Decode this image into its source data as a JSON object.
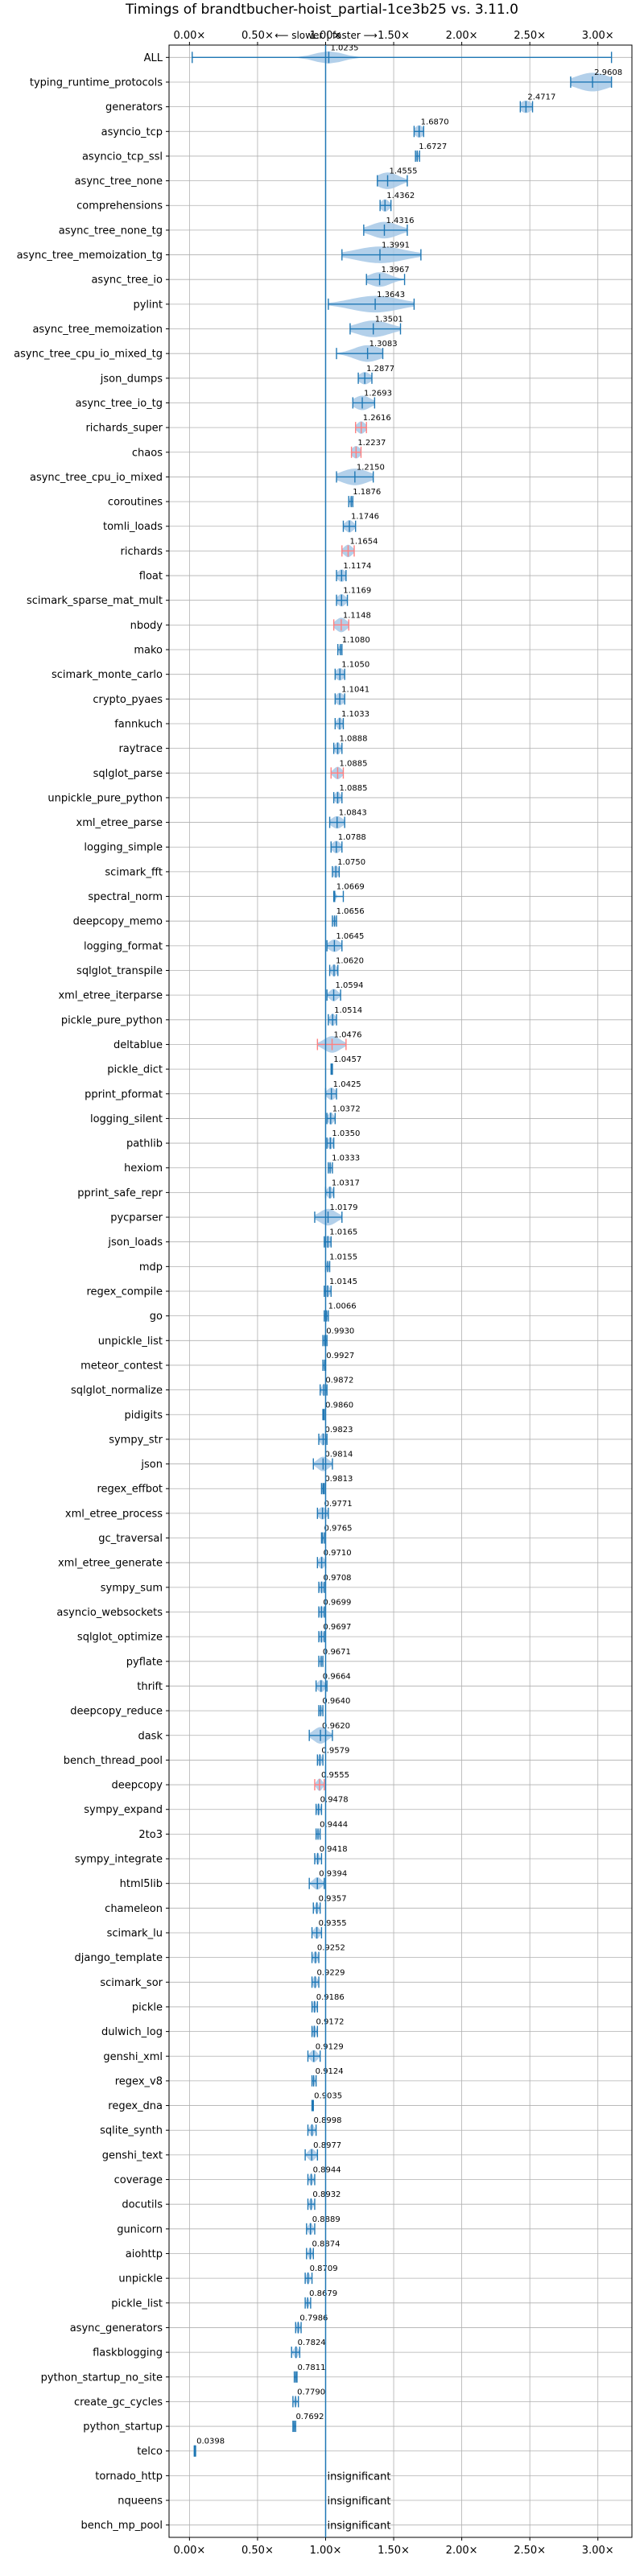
{
  "chart_data": {
    "type": "violin",
    "title": "Timings of brandtbucher-hoist_partial-1ce3b25 vs. 3.11.0",
    "direction_label": "⟵ slower | faster ⟶",
    "xlim": [
      -0.15,
      3.25
    ],
    "xticks": [
      0.0,
      0.5,
      1.0,
      1.5,
      2.0,
      2.5,
      3.0
    ],
    "xtick_labels": [
      "0.00×",
      "0.50×",
      "1.00×",
      "1.50×",
      "2.00×",
      "2.50×",
      "3.00×"
    ],
    "reference_line": 1.0,
    "insignificant_label": "insignificant",
    "colors": {
      "violin": "#a6c8e6",
      "axis_line": "#1f77b4",
      "whisker": "#1f77b4",
      "highlight": "#ff7f7f",
      "grid": "#b0b0b0"
    },
    "benchmarks": [
      {
        "name": "ALL",
        "value": 1.0235,
        "label": "1.0235",
        "lo": 0.02,
        "hi": 3.1,
        "spread": 0.1,
        "width": 0.6
      },
      {
        "name": "typing_runtime_protocols",
        "value": 2.9608,
        "label": "2.9608",
        "lo": 2.8,
        "hi": 3.1,
        "spread": 0.12,
        "width": 0.9
      },
      {
        "name": "generators",
        "value": 2.4717,
        "label": "2.4717",
        "lo": 2.43,
        "hi": 2.52,
        "spread": 0.04,
        "width": 0.6
      },
      {
        "name": "asyncio_tcp",
        "value": 1.687,
        "label": "1.6870",
        "lo": 1.65,
        "hi": 1.72,
        "spread": 0.03,
        "width": 0.6
      },
      {
        "name": "asyncio_tcp_ssl",
        "value": 1.6727,
        "label": "1.6727",
        "lo": 1.66,
        "hi": 1.69,
        "spread": 0.01,
        "width": 0.5
      },
      {
        "name": "async_tree_none",
        "value": 1.4555,
        "label": "1.4555",
        "lo": 1.38,
        "hi": 1.6,
        "spread": 0.08,
        "width": 0.8
      },
      {
        "name": "comprehensions",
        "value": 1.4362,
        "label": "1.4362",
        "lo": 1.4,
        "hi": 1.48,
        "spread": 0.03,
        "width": 0.6
      },
      {
        "name": "async_tree_none_tg",
        "value": 1.4316,
        "label": "1.4316",
        "lo": 1.28,
        "hi": 1.6,
        "spread": 0.1,
        "width": 0.8
      },
      {
        "name": "async_tree_memoization_tg",
        "value": 1.3991,
        "label": "1.3991",
        "lo": 1.12,
        "hi": 1.7,
        "spread": 0.18,
        "width": 0.8
      },
      {
        "name": "async_tree_io",
        "value": 1.3967,
        "label": "1.3967",
        "lo": 1.3,
        "hi": 1.58,
        "spread": 0.08,
        "width": 0.7
      },
      {
        "name": "pylint",
        "value": 1.3643,
        "label": "1.3643",
        "lo": 1.02,
        "hi": 1.65,
        "spread": 0.18,
        "width": 0.8
      },
      {
        "name": "async_tree_memoization",
        "value": 1.3501,
        "label": "1.3501",
        "lo": 1.18,
        "hi": 1.55,
        "spread": 0.12,
        "width": 0.8
      },
      {
        "name": "async_tree_cpu_io_mixed_tg",
        "value": 1.3083,
        "label": "1.3083",
        "lo": 1.08,
        "hi": 1.42,
        "spread": 0.1,
        "width": 0.8
      },
      {
        "name": "json_dumps",
        "value": 1.2877,
        "label": "1.2877",
        "lo": 1.24,
        "hi": 1.34,
        "spread": 0.04,
        "width": 0.6
      },
      {
        "name": "async_tree_io_tg",
        "value": 1.2693,
        "label": "1.2693",
        "lo": 1.2,
        "hi": 1.36,
        "spread": 0.06,
        "width": 0.7
      },
      {
        "name": "richards_super",
        "value": 1.2616,
        "label": "1.2616",
        "lo": 1.22,
        "hi": 1.3,
        "spread": 0.03,
        "width": 0.6,
        "highlight": true
      },
      {
        "name": "chaos",
        "value": 1.2237,
        "label": "1.2237",
        "lo": 1.19,
        "hi": 1.26,
        "spread": 0.03,
        "width": 0.6,
        "highlight": true
      },
      {
        "name": "async_tree_cpu_io_mixed",
        "value": 1.215,
        "label": "1.2150",
        "lo": 1.08,
        "hi": 1.35,
        "spread": 0.1,
        "width": 0.8
      },
      {
        "name": "coroutines",
        "value": 1.1876,
        "label": "1.1876",
        "lo": 1.17,
        "hi": 1.2,
        "spread": 0.01,
        "width": 0.5
      },
      {
        "name": "tomli_loads",
        "value": 1.1746,
        "label": "1.1746",
        "lo": 1.13,
        "hi": 1.22,
        "spread": 0.03,
        "width": 0.6
      },
      {
        "name": "richards",
        "value": 1.1654,
        "label": "1.1654",
        "lo": 1.12,
        "hi": 1.21,
        "spread": 0.03,
        "width": 0.6,
        "highlight": true
      },
      {
        "name": "float",
        "value": 1.1174,
        "label": "1.1174",
        "lo": 1.08,
        "hi": 1.15,
        "spread": 0.03,
        "width": 0.6
      },
      {
        "name": "scimark_sparse_mat_mult",
        "value": 1.1169,
        "label": "1.1169",
        "lo": 1.08,
        "hi": 1.16,
        "spread": 0.03,
        "width": 0.6
      },
      {
        "name": "nbody",
        "value": 1.1148,
        "label": "1.1148",
        "lo": 1.06,
        "hi": 1.17,
        "spread": 0.04,
        "width": 0.7,
        "highlight": true
      },
      {
        "name": "mako",
        "value": 1.108,
        "label": "1.1080",
        "lo": 1.09,
        "hi": 1.12,
        "spread": 0.01,
        "width": 0.5
      },
      {
        "name": "scimark_monte_carlo",
        "value": 1.105,
        "label": "1.1050",
        "lo": 1.07,
        "hi": 1.14,
        "spread": 0.03,
        "width": 0.6
      },
      {
        "name": "crypto_pyaes",
        "value": 1.1041,
        "label": "1.1041",
        "lo": 1.07,
        "hi": 1.14,
        "spread": 0.03,
        "width": 0.6
      },
      {
        "name": "fannkuch",
        "value": 1.1033,
        "label": "1.1033",
        "lo": 1.07,
        "hi": 1.13,
        "spread": 0.02,
        "width": 0.6
      },
      {
        "name": "raytrace",
        "value": 1.0888,
        "label": "1.0888",
        "lo": 1.06,
        "hi": 1.12,
        "spread": 0.02,
        "width": 0.6
      },
      {
        "name": "sqlglot_parse",
        "value": 1.0885,
        "label": "1.0885",
        "lo": 1.04,
        "hi": 1.13,
        "spread": 0.03,
        "width": 0.6,
        "highlight": true
      },
      {
        "name": "unpickle_pure_python",
        "value": 1.0885,
        "label": "1.0885",
        "lo": 1.06,
        "hi": 1.12,
        "spread": 0.02,
        "width": 0.6
      },
      {
        "name": "xml_etree_parse",
        "value": 1.0843,
        "label": "1.0843",
        "lo": 1.03,
        "hi": 1.14,
        "spread": 0.04,
        "width": 0.6
      },
      {
        "name": "logging_simple",
        "value": 1.0788,
        "label": "1.0788",
        "lo": 1.04,
        "hi": 1.12,
        "spread": 0.03,
        "width": 0.6
      },
      {
        "name": "scimark_fft",
        "value": 1.075,
        "label": "1.0750",
        "lo": 1.05,
        "hi": 1.1,
        "spread": 0.02,
        "width": 0.6
      },
      {
        "name": "spectral_norm",
        "value": 1.0669,
        "label": "1.0669",
        "lo": 1.06,
        "hi": 1.13,
        "spread": 0.01,
        "width": 0.4
      },
      {
        "name": "deepcopy_memo",
        "value": 1.0656,
        "label": "1.0656",
        "lo": 1.05,
        "hi": 1.08,
        "spread": 0.01,
        "width": 0.5
      },
      {
        "name": "logging_format",
        "value": 1.0645,
        "label": "1.0645",
        "lo": 1.01,
        "hi": 1.12,
        "spread": 0.04,
        "width": 0.6
      },
      {
        "name": "sqlglot_transpile",
        "value": 1.062,
        "label": "1.0620",
        "lo": 1.03,
        "hi": 1.09,
        "spread": 0.02,
        "width": 0.6
      },
      {
        "name": "xml_etree_iterparse",
        "value": 1.0594,
        "label": "1.0594",
        "lo": 1.01,
        "hi": 1.11,
        "spread": 0.03,
        "width": 0.6
      },
      {
        "name": "pickle_pure_python",
        "value": 1.0514,
        "label": "1.0514",
        "lo": 1.02,
        "hi": 1.08,
        "spread": 0.02,
        "width": 0.6
      },
      {
        "name": "deltablue",
        "value": 1.0476,
        "label": "1.0476",
        "lo": 0.94,
        "hi": 1.15,
        "spread": 0.06,
        "width": 0.8,
        "highlight": true
      },
      {
        "name": "pickle_dict",
        "value": 1.0457,
        "label": "1.0457",
        "lo": 1.04,
        "hi": 1.05,
        "spread": 0.005,
        "width": 0.4
      },
      {
        "name": "pprint_pformat",
        "value": 1.0425,
        "label": "1.0425",
        "lo": 1.0,
        "hi": 1.08,
        "spread": 0.03,
        "width": 0.6
      },
      {
        "name": "logging_silent",
        "value": 1.0372,
        "label": "1.0372",
        "lo": 1.01,
        "hi": 1.07,
        "spread": 0.02,
        "width": 0.6
      },
      {
        "name": "pathlib",
        "value": 1.035,
        "label": "1.0350",
        "lo": 1.01,
        "hi": 1.06,
        "spread": 0.02,
        "width": 0.6
      },
      {
        "name": "hexiom",
        "value": 1.0333,
        "label": "1.0333",
        "lo": 1.02,
        "hi": 1.05,
        "spread": 0.01,
        "width": 0.5
      },
      {
        "name": "pprint_safe_repr",
        "value": 1.0317,
        "label": "1.0317",
        "lo": 1.0,
        "hi": 1.06,
        "spread": 0.02,
        "width": 0.6
      },
      {
        "name": "pycparser",
        "value": 1.0179,
        "label": "1.0179",
        "lo": 0.92,
        "hi": 1.12,
        "spread": 0.06,
        "width": 0.8
      },
      {
        "name": "json_loads",
        "value": 1.0165,
        "label": "1.0165",
        "lo": 0.99,
        "hi": 1.04,
        "spread": 0.02,
        "width": 0.6
      },
      {
        "name": "mdp",
        "value": 1.0155,
        "label": "1.0155",
        "lo": 1.0,
        "hi": 1.03,
        "spread": 0.01,
        "width": 0.5
      },
      {
        "name": "regex_compile",
        "value": 1.0145,
        "label": "1.0145",
        "lo": 0.99,
        "hi": 1.04,
        "spread": 0.015,
        "width": 0.6
      },
      {
        "name": "go",
        "value": 1.0066,
        "label": "1.0066",
        "lo": 0.99,
        "hi": 1.02,
        "spread": 0.01,
        "width": 0.5
      },
      {
        "name": "unpickle_list",
        "value": 0.993,
        "label": "0.9930",
        "lo": 0.98,
        "hi": 1.01,
        "spread": 0.01,
        "width": 0.5
      },
      {
        "name": "meteor_contest",
        "value": 0.9927,
        "label": "0.9927",
        "lo": 0.98,
        "hi": 1.0,
        "spread": 0.008,
        "width": 0.5
      },
      {
        "name": "sqlglot_normalize",
        "value": 0.9872,
        "label": "0.9872",
        "lo": 0.96,
        "hi": 1.01,
        "spread": 0.015,
        "width": 0.6
      },
      {
        "name": "pidigits",
        "value": 0.986,
        "label": "0.9860",
        "lo": 0.98,
        "hi": 0.99,
        "spread": 0.004,
        "width": 0.4
      },
      {
        "name": "sympy_str",
        "value": 0.9823,
        "label": "0.9823",
        "lo": 0.95,
        "hi": 1.01,
        "spread": 0.02,
        "width": 0.6
      },
      {
        "name": "json",
        "value": 0.9814,
        "label": "0.9814",
        "lo": 0.91,
        "hi": 1.05,
        "spread": 0.04,
        "width": 0.7
      },
      {
        "name": "regex_effbot",
        "value": 0.9813,
        "label": "0.9813",
        "lo": 0.97,
        "hi": 0.99,
        "spread": 0.008,
        "width": 0.5
      },
      {
        "name": "xml_etree_process",
        "value": 0.9771,
        "label": "0.9771",
        "lo": 0.94,
        "hi": 1.02,
        "spread": 0.03,
        "width": 0.6
      },
      {
        "name": "gc_traversal",
        "value": 0.9765,
        "label": "0.9765",
        "lo": 0.97,
        "hi": 0.99,
        "spread": 0.006,
        "width": 0.4
      },
      {
        "name": "xml_etree_generate",
        "value": 0.971,
        "label": "0.9710",
        "lo": 0.94,
        "hi": 1.0,
        "spread": 0.02,
        "width": 0.6
      },
      {
        "name": "sympy_sum",
        "value": 0.9708,
        "label": "0.9708",
        "lo": 0.95,
        "hi": 0.99,
        "spread": 0.015,
        "width": 0.6
      },
      {
        "name": "asyncio_websockets",
        "value": 0.9699,
        "label": "0.9699",
        "lo": 0.95,
        "hi": 0.99,
        "spread": 0.015,
        "width": 0.6
      },
      {
        "name": "sqlglot_optimize",
        "value": 0.9697,
        "label": "0.9697",
        "lo": 0.95,
        "hi": 0.99,
        "spread": 0.015,
        "width": 0.6
      },
      {
        "name": "pyflate",
        "value": 0.9671,
        "label": "0.9671",
        "lo": 0.95,
        "hi": 0.98,
        "spread": 0.01,
        "width": 0.5
      },
      {
        "name": "thrift",
        "value": 0.9664,
        "label": "0.9664",
        "lo": 0.93,
        "hi": 1.01,
        "spread": 0.025,
        "width": 0.6
      },
      {
        "name": "deepcopy_reduce",
        "value": 0.964,
        "label": "0.9640",
        "lo": 0.95,
        "hi": 0.98,
        "spread": 0.01,
        "width": 0.5
      },
      {
        "name": "dask",
        "value": 0.962,
        "label": "0.9620",
        "lo": 0.88,
        "hi": 1.05,
        "spread": 0.05,
        "width": 0.8
      },
      {
        "name": "bench_thread_pool",
        "value": 0.9579,
        "label": "0.9579",
        "lo": 0.94,
        "hi": 0.98,
        "spread": 0.012,
        "width": 0.6
      },
      {
        "name": "deepcopy",
        "value": 0.9555,
        "label": "0.9555",
        "lo": 0.92,
        "hi": 0.99,
        "spread": 0.02,
        "width": 0.6,
        "highlight": true
      },
      {
        "name": "sympy_expand",
        "value": 0.9478,
        "label": "0.9478",
        "lo": 0.93,
        "hi": 0.97,
        "spread": 0.012,
        "width": 0.6
      },
      {
        "name": "2to3",
        "value": 0.9444,
        "label": "0.9444",
        "lo": 0.93,
        "hi": 0.96,
        "spread": 0.01,
        "width": 0.5
      },
      {
        "name": "sympy_integrate",
        "value": 0.9418,
        "label": "0.9418",
        "lo": 0.92,
        "hi": 0.97,
        "spread": 0.012,
        "width": 0.6
      },
      {
        "name": "html5lib",
        "value": 0.9394,
        "label": "0.9394",
        "lo": 0.88,
        "hi": 0.99,
        "spread": 0.03,
        "width": 0.6
      },
      {
        "name": "chameleon",
        "value": 0.9357,
        "label": "0.9357",
        "lo": 0.91,
        "hi": 0.96,
        "spread": 0.012,
        "width": 0.6
      },
      {
        "name": "scimark_lu",
        "value": 0.9355,
        "label": "0.9355",
        "lo": 0.9,
        "hi": 0.97,
        "spread": 0.02,
        "width": 0.6
      },
      {
        "name": "django_template",
        "value": 0.9252,
        "label": "0.9252",
        "lo": 0.9,
        "hi": 0.95,
        "spread": 0.015,
        "width": 0.6
      },
      {
        "name": "scimark_sor",
        "value": 0.9229,
        "label": "0.9229",
        "lo": 0.9,
        "hi": 0.95,
        "spread": 0.015,
        "width": 0.6
      },
      {
        "name": "pickle",
        "value": 0.9186,
        "label": "0.9186",
        "lo": 0.9,
        "hi": 0.94,
        "spread": 0.012,
        "width": 0.6
      },
      {
        "name": "dulwich_log",
        "value": 0.9172,
        "label": "0.9172",
        "lo": 0.9,
        "hi": 0.94,
        "spread": 0.012,
        "width": 0.6
      },
      {
        "name": "genshi_xml",
        "value": 0.9129,
        "label": "0.9129",
        "lo": 0.87,
        "hi": 0.96,
        "spread": 0.025,
        "width": 0.6
      },
      {
        "name": "regex_v8",
        "value": 0.9124,
        "label": "0.9124",
        "lo": 0.9,
        "hi": 0.93,
        "spread": 0.008,
        "width": 0.5
      },
      {
        "name": "regex_dna",
        "value": 0.9035,
        "label": "0.9035",
        "lo": 0.9,
        "hi": 0.91,
        "spread": 0.004,
        "width": 0.4
      },
      {
        "name": "sqlite_synth",
        "value": 0.8998,
        "label": "0.8998",
        "lo": 0.87,
        "hi": 0.93,
        "spread": 0.015,
        "width": 0.6
      },
      {
        "name": "genshi_text",
        "value": 0.8977,
        "label": "0.8977",
        "lo": 0.85,
        "hi": 0.94,
        "spread": 0.025,
        "width": 0.6
      },
      {
        "name": "coverage",
        "value": 0.8944,
        "label": "0.8944",
        "lo": 0.87,
        "hi": 0.92,
        "spread": 0.012,
        "width": 0.6
      },
      {
        "name": "docutils",
        "value": 0.8932,
        "label": "0.8932",
        "lo": 0.87,
        "hi": 0.92,
        "spread": 0.012,
        "width": 0.6
      },
      {
        "name": "gunicorn",
        "value": 0.8889,
        "label": "0.8889",
        "lo": 0.86,
        "hi": 0.92,
        "spread": 0.015,
        "width": 0.6
      },
      {
        "name": "aiohttp",
        "value": 0.8874,
        "label": "0.8874",
        "lo": 0.86,
        "hi": 0.91,
        "spread": 0.012,
        "width": 0.6
      },
      {
        "name": "unpickle",
        "value": 0.8709,
        "label": "0.8709",
        "lo": 0.85,
        "hi": 0.9,
        "spread": 0.012,
        "width": 0.6
      },
      {
        "name": "pickle_list",
        "value": 0.8679,
        "label": "0.8679",
        "lo": 0.85,
        "hi": 0.89,
        "spread": 0.01,
        "width": 0.5
      },
      {
        "name": "async_generators",
        "value": 0.7986,
        "label": "0.7986",
        "lo": 0.78,
        "hi": 0.82,
        "spread": 0.01,
        "width": 0.6
      },
      {
        "name": "flaskblogging",
        "value": 0.7824,
        "label": "0.7824",
        "lo": 0.75,
        "hi": 0.81,
        "spread": 0.015,
        "width": 0.6
      },
      {
        "name": "python_startup_no_site",
        "value": 0.7811,
        "label": "0.7811",
        "lo": 0.77,
        "hi": 0.79,
        "spread": 0.005,
        "width": 0.5
      },
      {
        "name": "create_gc_cycles",
        "value": 0.779,
        "label": "0.7790",
        "lo": 0.76,
        "hi": 0.8,
        "spread": 0.008,
        "width": 0.5
      },
      {
        "name": "python_startup",
        "value": 0.7692,
        "label": "0.7692",
        "lo": 0.76,
        "hi": 0.78,
        "spread": 0.005,
        "width": 0.5
      },
      {
        "name": "telco",
        "value": 0.0398,
        "label": "0.0398",
        "lo": 0.035,
        "hi": 0.045,
        "spread": 0.003,
        "width": 0.5
      },
      {
        "name": "tornado_http",
        "value": null,
        "label": "",
        "insignificant": true
      },
      {
        "name": "nqueens",
        "value": null,
        "label": "",
        "insignificant": true
      },
      {
        "name": "bench_mp_pool",
        "value": null,
        "label": "",
        "insignificant": true
      }
    ]
  }
}
